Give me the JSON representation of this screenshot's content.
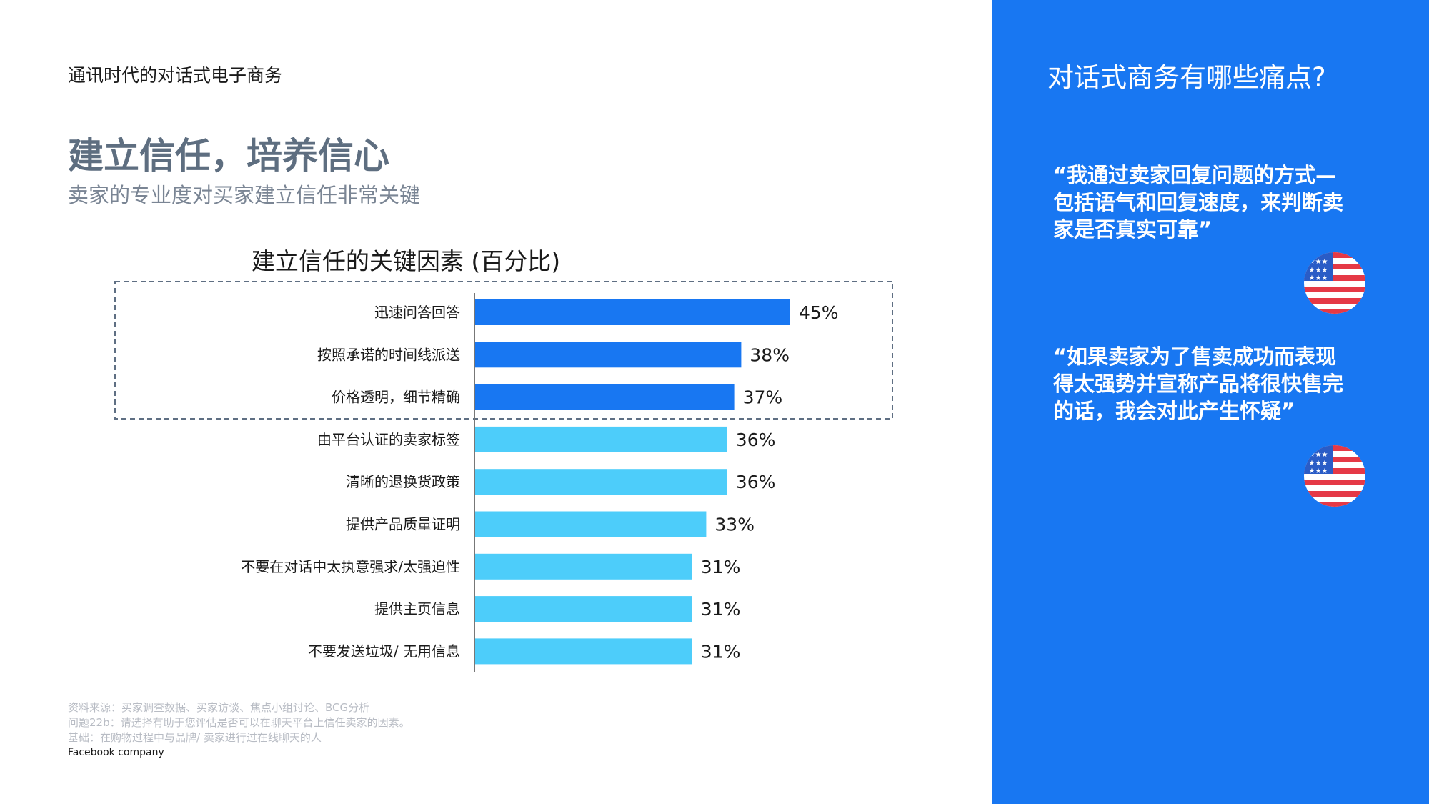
{
  "header": {
    "title": "通讯时代的对话式电子商务"
  },
  "main": {
    "title": "建立信任，培养信心",
    "subtitle": "卖家的专业度对买家建立信任非常关键"
  },
  "chart_data": {
    "type": "bar",
    "orientation": "horizontal",
    "title": "建立信任的关键因素 (百分比)",
    "unit": "%",
    "categories": [
      "迅速问答回答",
      "按照承诺的时间线派送",
      "价格透明，细节精确",
      "由平台认证的卖家标签",
      "清晰的退换货政策",
      "提供产品质量证明",
      "不要在对话中太执意强求/太强迫性",
      "提供主页信息",
      "不要发送垃圾/ 无用信息"
    ],
    "values": [
      45,
      38,
      37,
      36,
      36,
      33,
      31,
      31,
      31
    ],
    "highlighted_count": 3,
    "xlim": [
      0,
      100
    ],
    "colors": {
      "highlighted": "#1877f2",
      "normal": "#4dcdfa",
      "highlight_box": "#5f6f83"
    }
  },
  "footnotes": {
    "source": "资料来源：买家调查数据、买家访谈、焦点小组讨论、BCG分析",
    "question": "问题22b：请选择有助于您评估是否可以在聊天平台上信任卖家的因素。",
    "base": "基础：在购物过程中与品牌/ 卖家进行过在线聊天的人",
    "company": "Facebook company"
  },
  "panel": {
    "title": "对话式商务有哪些痛点?",
    "quotes": [
      {
        "text": "“我通过卖家回复问题的方式—包括语气和回复速度，来判断卖家是否真实可靠”",
        "flag": "us-flag-icon"
      },
      {
        "text": "“如果卖家为了售卖成功而表现得太强势并宣称产品将很快售完的话，我会对此产生怀疑”",
        "flag": "us-flag-icon"
      }
    ],
    "colors": {
      "background": "#1877f2"
    }
  }
}
